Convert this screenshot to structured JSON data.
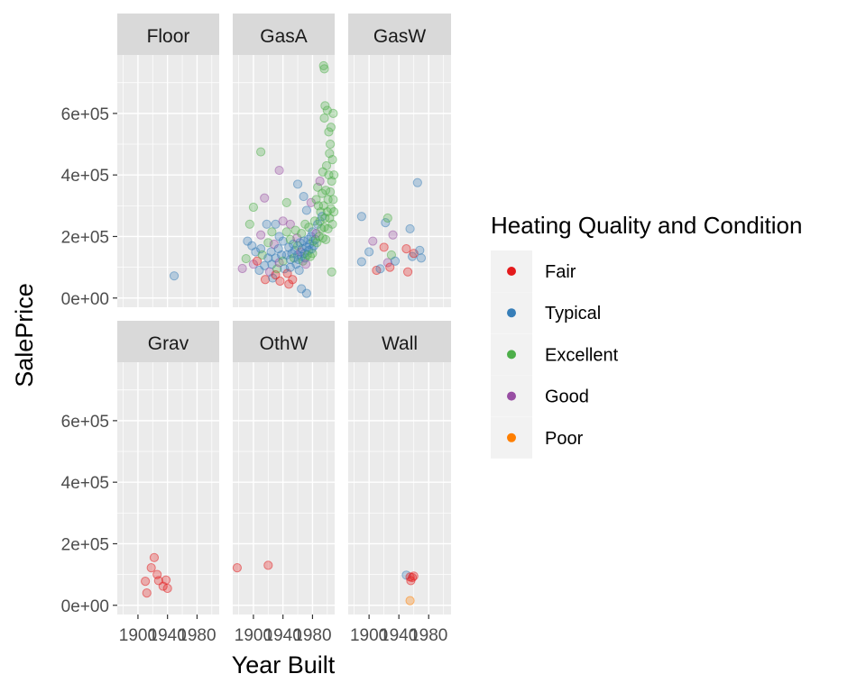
{
  "chart_data": {
    "type": "scatter",
    "title": "",
    "xlabel": "Year Built",
    "ylabel": "SalePrice",
    "xlim": [
      1872,
      2010
    ],
    "ylim": [
      -30000,
      790000
    ],
    "x_ticks": [
      1900,
      1940,
      1980
    ],
    "x_tick_labels": [
      "1900",
      "1940",
      "1980"
    ],
    "y_ticks": [
      0,
      200000,
      400000,
      600000
    ],
    "y_tick_labels": [
      "0e+00",
      "2e+05",
      "4e+05",
      "6e+05"
    ],
    "grid": true,
    "facet_layout": "2 rows x 3 columns",
    "legend": {
      "title": "Heating Quality and Condition",
      "placement": "right",
      "entries": [
        {
          "label": "Fair",
          "color": "#E41A1C"
        },
        {
          "label": "Typical",
          "color": "#377EB8"
        },
        {
          "label": "Excellent",
          "color": "#4DAF4A"
        },
        {
          "label": "Good",
          "color": "#984EA3"
        },
        {
          "label": "Poor",
          "color": "#FF7F00"
        }
      ]
    },
    "colors": {
      "Fair": "#E41A1C",
      "Typical": "#377EB8",
      "Excellent": "#4DAF4A",
      "Good": "#984EA3",
      "Poor": "#FF7F00"
    },
    "panels": [
      {
        "name": "Floor",
        "points": [
          [
            1949,
            72000,
            "Typical"
          ]
        ]
      },
      {
        "name": "GasA",
        "points": [
          [
            1885,
            96000,
            "Good"
          ],
          [
            1890,
            128000,
            "Excellent"
          ],
          [
            1892,
            185000,
            "Typical"
          ],
          [
            1895,
            240000,
            "Excellent"
          ],
          [
            1898,
            170000,
            "Typical"
          ],
          [
            1900,
            110000,
            "Good"
          ],
          [
            1900,
            295000,
            "Excellent"
          ],
          [
            1903,
            150000,
            "Typical"
          ],
          [
            1905,
            120000,
            "Fair"
          ],
          [
            1908,
            90000,
            "Typical"
          ],
          [
            1910,
            475000,
            "Excellent"
          ],
          [
            1910,
            205000,
            "Good"
          ],
          [
            1910,
            160000,
            "Typical"
          ],
          [
            1912,
            140000,
            "Excellent"
          ],
          [
            1915,
            105000,
            "Typical"
          ],
          [
            1915,
            325000,
            "Good"
          ],
          [
            1916,
            60000,
            "Fair"
          ],
          [
            1918,
            240000,
            "Typical"
          ],
          [
            1920,
            180000,
            "Excellent"
          ],
          [
            1920,
            130000,
            "Typical"
          ],
          [
            1922,
            85000,
            "Good"
          ],
          [
            1924,
            150000,
            "Typical"
          ],
          [
            1925,
            215000,
            "Excellent"
          ],
          [
            1925,
            110000,
            "Typical"
          ],
          [
            1926,
            65000,
            "Typical"
          ],
          [
            1928,
            175000,
            "Good"
          ],
          [
            1930,
            130000,
            "Typical"
          ],
          [
            1930,
            240000,
            "Typical"
          ],
          [
            1930,
            75000,
            "Fair"
          ],
          [
            1932,
            95000,
            "Excellent"
          ],
          [
            1934,
            160000,
            "Typical"
          ],
          [
            1935,
            200000,
            "Typical"
          ],
          [
            1935,
            115000,
            "Good"
          ],
          [
            1936,
            55000,
            "Fair"
          ],
          [
            1938,
            140000,
            "Typical"
          ],
          [
            1940,
            120000,
            "Excellent"
          ],
          [
            1940,
            185000,
            "Typical"
          ],
          [
            1940,
            250000,
            "Good"
          ],
          [
            1942,
            95000,
            "Typical"
          ],
          [
            1945,
            140000,
            "Typical"
          ],
          [
            1945,
            215000,
            "Excellent"
          ],
          [
            1946,
            80000,
            "Fair"
          ],
          [
            1948,
            165000,
            "Typical"
          ],
          [
            1950,
            125000,
            "Typical"
          ],
          [
            1950,
            190000,
            "Excellent"
          ],
          [
            1950,
            240000,
            "Good"
          ],
          [
            1950,
            100000,
            "Typical"
          ],
          [
            1952,
            145000,
            "Typical"
          ],
          [
            1953,
            60000,
            "Fair"
          ],
          [
            1954,
            175000,
            "Typical"
          ],
          [
            1955,
            130000,
            "Excellent"
          ],
          [
            1956,
            155000,
            "Typical"
          ],
          [
            1957,
            220000,
            "Excellent"
          ],
          [
            1958,
            110000,
            "Typical"
          ],
          [
            1959,
            195000,
            "Good"
          ],
          [
            1960,
            140000,
            "Typical"
          ],
          [
            1960,
            170000,
            "Excellent"
          ],
          [
            1961,
            125000,
            "Typical"
          ],
          [
            1962,
            90000,
            "Typical"
          ],
          [
            1963,
            180000,
            "Typical"
          ],
          [
            1964,
            150000,
            "Good"
          ],
          [
            1965,
            135000,
            "Typical"
          ],
          [
            1965,
            210000,
            "Excellent"
          ],
          [
            1966,
            160000,
            "Typical"
          ],
          [
            1967,
            120000,
            "Excellent"
          ],
          [
            1968,
            185000,
            "Typical"
          ],
          [
            1968,
            330000,
            "Typical"
          ],
          [
            1969,
            145000,
            "Typical"
          ],
          [
            1970,
            130000,
            "Typical"
          ],
          [
            1970,
            240000,
            "Excellent"
          ],
          [
            1971,
            110000,
            "Good"
          ],
          [
            1972,
            165000,
            "Typical"
          ],
          [
            1972,
            285000,
            "Typical"
          ],
          [
            1973,
            140000,
            "Excellent"
          ],
          [
            1974,
            190000,
            "Typical"
          ],
          [
            1975,
            155000,
            "Typical"
          ],
          [
            1975,
            230000,
            "Excellent"
          ],
          [
            1976,
            175000,
            "Typical"
          ],
          [
            1977,
            135000,
            "Excellent"
          ],
          [
            1978,
            200000,
            "Typical"
          ],
          [
            1978,
            310000,
            "Good"
          ],
          [
            1979,
            160000,
            "Typical"
          ],
          [
            1980,
            145000,
            "Excellent"
          ],
          [
            1980,
            215000,
            "Typical"
          ],
          [
            1981,
            185000,
            "Excellent"
          ],
          [
            1982,
            170000,
            "Typical"
          ],
          [
            1983,
            250000,
            "Excellent"
          ],
          [
            1984,
            190000,
            "Typical"
          ],
          [
            1985,
            320000,
            "Excellent"
          ],
          [
            1985,
            210000,
            "Good"
          ],
          [
            1986,
            180000,
            "Excellent"
          ],
          [
            1987,
            360000,
            "Excellent"
          ],
          [
            1987,
            240000,
            "Typical"
          ],
          [
            1988,
            300000,
            "Excellent"
          ],
          [
            1989,
            200000,
            "Excellent"
          ],
          [
            1990,
            250000,
            "Excellent"
          ],
          [
            1990,
            380000,
            "Good"
          ],
          [
            1991,
            280000,
            "Excellent"
          ],
          [
            1992,
            225000,
            "Excellent"
          ],
          [
            1993,
            340000,
            "Excellent"
          ],
          [
            1993,
            265000,
            "Typical"
          ],
          [
            1994,
            410000,
            "Excellent"
          ],
          [
            1994,
            195000,
            "Excellent"
          ],
          [
            1995,
            300000,
            "Excellent"
          ],
          [
            1995,
            755000,
            "Excellent"
          ],
          [
            1996,
            745000,
            "Excellent"
          ],
          [
            1996,
            230000,
            "Excellent"
          ],
          [
            1996,
            585000,
            "Excellent"
          ],
          [
            1997,
            260000,
            "Excellent"
          ],
          [
            1997,
            625000,
            "Excellent"
          ],
          [
            1998,
            350000,
            "Excellent"
          ],
          [
            1998,
            190000,
            "Excellent"
          ],
          [
            1999,
            430000,
            "Excellent"
          ],
          [
            2000,
            280000,
            "Excellent"
          ],
          [
            2000,
            610000,
            "Excellent"
          ],
          [
            2001,
            320000,
            "Excellent"
          ],
          [
            2001,
            225000,
            "Excellent"
          ],
          [
            2002,
            400000,
            "Excellent"
          ],
          [
            2002,
            540000,
            "Excellent"
          ],
          [
            2003,
            260000,
            "Excellent"
          ],
          [
            2003,
            470000,
            "Excellent"
          ],
          [
            2004,
            345000,
            "Excellent"
          ],
          [
            2004,
            500000,
            "Excellent"
          ],
          [
            2005,
            290000,
            "Excellent"
          ],
          [
            2005,
            555000,
            "Excellent"
          ],
          [
            2006,
            380000,
            "Excellent"
          ],
          [
            2006,
            85000,
            "Excellent"
          ],
          [
            2007,
            240000,
            "Excellent"
          ],
          [
            2007,
            450000,
            "Excellent"
          ],
          [
            2008,
            320000,
            "Excellent"
          ],
          [
            2008,
            600000,
            "Excellent"
          ],
          [
            2009,
            280000,
            "Excellent"
          ],
          [
            2009,
            400000,
            "Excellent"
          ],
          [
            1935,
            415000,
            "Good"
          ],
          [
            1948,
            45000,
            "Fair"
          ],
          [
            1965,
            30000,
            "Typical"
          ],
          [
            1972,
            15000,
            "Typical"
          ],
          [
            1960,
            370000,
            "Typical"
          ],
          [
            1945,
            310000,
            "Excellent"
          ]
        ]
      },
      {
        "name": "GasW",
        "points": [
          [
            1890,
            265000,
            "Typical"
          ],
          [
            1890,
            118000,
            "Typical"
          ],
          [
            1900,
            150000,
            "Typical"
          ],
          [
            1905,
            185000,
            "Good"
          ],
          [
            1910,
            90000,
            "Fair"
          ],
          [
            1915,
            95000,
            "Typical"
          ],
          [
            1920,
            165000,
            "Fair"
          ],
          [
            1922,
            245000,
            "Typical"
          ],
          [
            1925,
            260000,
            "Excellent"
          ],
          [
            1925,
            115000,
            "Good"
          ],
          [
            1928,
            100000,
            "Fair"
          ],
          [
            1930,
            140000,
            "Excellent"
          ],
          [
            1932,
            205000,
            "Good"
          ],
          [
            1935,
            120000,
            "Typical"
          ],
          [
            1950,
            160000,
            "Fair"
          ],
          [
            1952,
            85000,
            "Fair"
          ],
          [
            1955,
            225000,
            "Typical"
          ],
          [
            1958,
            135000,
            "Typical"
          ],
          [
            1960,
            145000,
            "Fair"
          ],
          [
            1965,
            375000,
            "Typical"
          ],
          [
            1968,
            155000,
            "Typical"
          ],
          [
            1970,
            130000,
            "Typical"
          ]
        ]
      },
      {
        "name": "Grav",
        "points": [
          [
            1910,
            78000,
            "Fair"
          ],
          [
            1912,
            40000,
            "Fair"
          ],
          [
            1918,
            122000,
            "Fair"
          ],
          [
            1922,
            155000,
            "Fair"
          ],
          [
            1926,
            100000,
            "Fair"
          ],
          [
            1928,
            80000,
            "Fair"
          ],
          [
            1934,
            62000,
            "Fair"
          ],
          [
            1938,
            82000,
            "Fair"
          ],
          [
            1940,
            55000,
            "Fair"
          ]
        ]
      },
      {
        "name": "OthW",
        "points": [
          [
            1878,
            122000,
            "Fair"
          ],
          [
            1920,
            130000,
            "Fair"
          ]
        ]
      },
      {
        "name": "Wall",
        "points": [
          [
            1950,
            98000,
            "Typical"
          ],
          [
            1955,
            92000,
            "Fair"
          ],
          [
            1958,
            90000,
            "Fair"
          ],
          [
            1956,
            80000,
            "Fair"
          ],
          [
            1960,
            95000,
            "Fair"
          ],
          [
            1955,
            15000,
            "Poor"
          ]
        ]
      }
    ]
  }
}
